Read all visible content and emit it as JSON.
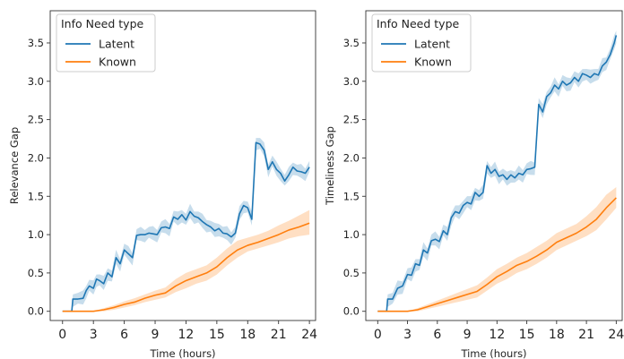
{
  "colors": {
    "latent": "#1f77b4",
    "known": "#ff7f0e",
    "axes": "#333333"
  },
  "chart_data": [
    {
      "type": "line",
      "title": "",
      "xlabel": "Time (hours)",
      "ylabel": "Relevance Gap",
      "xlim": [
        -1.2,
        24.6
      ],
      "ylim": [
        -0.12,
        3.92
      ],
      "xticks": [
        0,
        3,
        6,
        9,
        12,
        15,
        18,
        21,
        24
      ],
      "yticks": [
        0.0,
        0.5,
        1.0,
        1.5,
        2.0,
        2.5,
        3.0,
        3.5
      ],
      "ytick_labels": [
        "0.0",
        "0.5",
        "1.0",
        "1.5",
        "2.0",
        "2.5",
        "3.0",
        "3.5"
      ],
      "grid": false,
      "legend": {
        "title": "Info Need type",
        "placement": "top-left"
      },
      "series": [
        {
          "name": "Latent",
          "color": "#1f77b4",
          "x": [
            0,
            0.9,
            1.0,
            1.5,
            2.0,
            2.3,
            2.6,
            3.0,
            3.3,
            3.6,
            4.0,
            4.4,
            4.8,
            5.2,
            5.6,
            6.0,
            6.4,
            6.8,
            7.2,
            7.6,
            8.0,
            8.4,
            8.8,
            9.2,
            9.6,
            10.0,
            10.4,
            10.8,
            11.2,
            11.6,
            12.0,
            12.4,
            12.8,
            13.2,
            13.6,
            14.0,
            14.4,
            14.8,
            15.2,
            15.6,
            16.0,
            16.4,
            16.8,
            17.2,
            17.6,
            18.0,
            18.4,
            18.8,
            19.2,
            19.6,
            20.0,
            20.4,
            20.8,
            21.2,
            21.6,
            22.0,
            22.4,
            22.8,
            23.2,
            23.6,
            24.0
          ],
          "y": [
            0,
            0,
            0.16,
            0.16,
            0.17,
            0.27,
            0.33,
            0.3,
            0.42,
            0.4,
            0.36,
            0.5,
            0.45,
            0.7,
            0.62,
            0.8,
            0.75,
            0.7,
            0.99,
            1.0,
            1.0,
            1.02,
            1.01,
            1.0,
            1.09,
            1.1,
            1.08,
            1.23,
            1.2,
            1.26,
            1.19,
            1.3,
            1.24,
            1.22,
            1.17,
            1.13,
            1.1,
            1.05,
            1.08,
            1.02,
            1.01,
            0.97,
            1.02,
            1.27,
            1.38,
            1.35,
            1.2,
            2.2,
            2.18,
            2.1,
            1.85,
            1.95,
            1.85,
            1.8,
            1.7,
            1.78,
            1.88,
            1.83,
            1.82,
            1.8,
            1.88
          ]
        },
        {
          "name": "Known",
          "color": "#ff7f0e",
          "x": [
            0,
            1.0,
            2.0,
            3.0,
            4.0,
            5.0,
            6.0,
            7.0,
            8.0,
            9.0,
            10.0,
            11.0,
            12.0,
            13.0,
            14.0,
            15.0,
            16.0,
            17.0,
            18.0,
            19.0,
            20.0,
            21.0,
            22.0,
            23.0,
            24.0
          ],
          "y": [
            0,
            0,
            0,
            0,
            0.02,
            0.05,
            0.09,
            0.12,
            0.17,
            0.21,
            0.24,
            0.33,
            0.4,
            0.45,
            0.5,
            0.58,
            0.7,
            0.8,
            0.86,
            0.9,
            0.95,
            1.0,
            1.06,
            1.1,
            1.15
          ],
          "lower": [
            0,
            0,
            0,
            0,
            0.0,
            0.02,
            0.05,
            0.08,
            0.12,
            0.15,
            0.18,
            0.25,
            0.3,
            0.36,
            0.4,
            0.48,
            0.6,
            0.7,
            0.78,
            0.82,
            0.86,
            0.9,
            0.95,
            0.98,
            1.0
          ],
          "upper": [
            0,
            0,
            0,
            0,
            0.04,
            0.08,
            0.13,
            0.17,
            0.22,
            0.27,
            0.31,
            0.42,
            0.5,
            0.55,
            0.6,
            0.7,
            0.82,
            0.92,
            0.96,
            1.0,
            1.05,
            1.12,
            1.18,
            1.25,
            1.32
          ]
        }
      ]
    },
    {
      "type": "line",
      "title": "",
      "xlabel": "Time (hours)",
      "ylabel": "Timeliness Gap",
      "xlim": [
        -1.2,
        24.6
      ],
      "ylim": [
        -0.12,
        3.92
      ],
      "xticks": [
        0,
        3,
        6,
        9,
        12,
        15,
        18,
        21,
        24
      ],
      "yticks": [
        0.0,
        0.5,
        1.0,
        1.5,
        2.0,
        2.5,
        3.0,
        3.5
      ],
      "ytick_labels": [
        "0.0",
        "0.5",
        "1.0",
        "1.5",
        "2.0",
        "2.5",
        "3.0",
        "3.5"
      ],
      "grid": false,
      "legend": {
        "title": "Info Need type",
        "placement": "top-left"
      },
      "series": [
        {
          "name": "Latent",
          "color": "#1f77b4",
          "x": [
            0,
            0.9,
            1.0,
            1.5,
            2.0,
            2.5,
            3.0,
            3.4,
            3.8,
            4.2,
            4.6,
            5.0,
            5.4,
            5.8,
            6.2,
            6.6,
            7.0,
            7.4,
            7.8,
            8.2,
            8.6,
            9.0,
            9.4,
            9.8,
            10.2,
            10.6,
            11.0,
            11.4,
            11.8,
            12.2,
            12.6,
            13.0,
            13.4,
            13.8,
            14.2,
            14.6,
            15.0,
            15.4,
            15.8,
            16.2,
            16.6,
            17.0,
            17.4,
            17.8,
            18.2,
            18.6,
            19.0,
            19.4,
            19.8,
            20.2,
            20.6,
            21.0,
            21.4,
            21.8,
            22.2,
            22.6,
            23.0,
            23.4,
            23.8,
            24.0
          ],
          "y": [
            0,
            0,
            0.16,
            0.16,
            0.3,
            0.33,
            0.48,
            0.47,
            0.62,
            0.6,
            0.8,
            0.76,
            0.92,
            0.94,
            0.91,
            1.05,
            1.0,
            1.22,
            1.3,
            1.28,
            1.38,
            1.42,
            1.4,
            1.55,
            1.5,
            1.55,
            1.9,
            1.8,
            1.85,
            1.76,
            1.78,
            1.72,
            1.78,
            1.74,
            1.8,
            1.78,
            1.85,
            1.86,
            1.88,
            2.7,
            2.6,
            2.8,
            2.85,
            2.95,
            2.9,
            3.0,
            2.95,
            2.98,
            3.05,
            3.0,
            3.1,
            3.08,
            3.05,
            3.1,
            3.08,
            3.2,
            3.25,
            3.35,
            3.5,
            3.6
          ]
        },
        {
          "name": "Known",
          "color": "#ff7f0e",
          "x": [
            0,
            1.0,
            2.0,
            3.0,
            4.0,
            5.0,
            6.0,
            7.0,
            8.0,
            9.0,
            10.0,
            11.0,
            12.0,
            13.0,
            14.0,
            15.0,
            16.0,
            17.0,
            18.0,
            19.0,
            20.0,
            21.0,
            22.0,
            23.0,
            24.0
          ],
          "y": [
            0,
            0,
            0,
            0,
            0.02,
            0.06,
            0.1,
            0.14,
            0.18,
            0.22,
            0.26,
            0.35,
            0.45,
            0.52,
            0.6,
            0.65,
            0.72,
            0.8,
            0.9,
            0.96,
            1.02,
            1.1,
            1.2,
            1.35,
            1.48
          ],
          "lower": [
            0,
            0,
            0,
            0,
            0.0,
            0.03,
            0.06,
            0.09,
            0.12,
            0.15,
            0.18,
            0.27,
            0.36,
            0.42,
            0.5,
            0.55,
            0.62,
            0.7,
            0.8,
            0.86,
            0.92,
            0.98,
            1.06,
            1.2,
            1.35
          ],
          "upper": [
            0,
            0,
            0,
            0,
            0.04,
            0.09,
            0.14,
            0.19,
            0.24,
            0.29,
            0.34,
            0.44,
            0.55,
            0.62,
            0.7,
            0.76,
            0.84,
            0.92,
            1.02,
            1.08,
            1.14,
            1.24,
            1.36,
            1.52,
            1.62
          ]
        }
      ]
    }
  ]
}
